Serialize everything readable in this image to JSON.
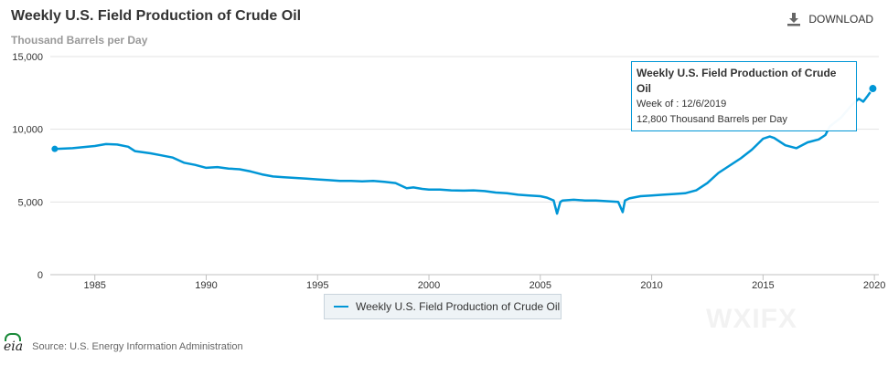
{
  "header": {
    "title": "Weekly U.S. Field Production of Crude Oil",
    "subtitle": "Thousand Barrels per Day",
    "download_label": "DOWNLOAD",
    "download_icon": "download-icon"
  },
  "legend": {
    "label": "Weekly U.S. Field Production of Crude Oil",
    "color": "#0096d6"
  },
  "tooltip": {
    "title": "Weekly U.S. Field Production of Crude Oil",
    "week": "Week of : 12/6/2019",
    "value": "12,800 Thousand Barrels per Day"
  },
  "footer": {
    "logo_text": "eia",
    "source": "Source: U.S. Energy Information Administration"
  },
  "watermark": "WXIFX",
  "chart_data": {
    "type": "line",
    "title": "Weekly U.S. Field Production of Crude Oil",
    "ylabel": "Thousand Barrels per Day",
    "xlim": [
      1983,
      2020.2
    ],
    "ylim": [
      0,
      15000
    ],
    "xticks": [
      1985,
      1990,
      1995,
      2000,
      2005,
      2010,
      2015,
      2020
    ],
    "yticks": [
      0,
      5000,
      10000,
      15000
    ],
    "ytick_labels": [
      "0",
      "5,000",
      "10,000",
      "15,000"
    ],
    "grid": true,
    "legend_position": "bottom-center",
    "series": [
      {
        "name": "Weekly U.S. Field Production of Crude Oil",
        "color": "#0096d6",
        "x": [
          1983.2,
          1984.0,
          1985.0,
          1985.5,
          1986.0,
          1986.5,
          1986.8,
          1987.5,
          1988.0,
          1988.5,
          1989.0,
          1989.5,
          1990.0,
          1990.5,
          1991.0,
          1991.5,
          1992.0,
          1992.5,
          1993.0,
          1993.5,
          1994.0,
          1994.5,
          1995.0,
          1995.5,
          1996.0,
          1996.5,
          1997.0,
          1997.5,
          1998.0,
          1998.5,
          1999.0,
          1999.3,
          1999.7,
          2000.0,
          2000.5,
          2001.0,
          2001.5,
          2002.0,
          2002.5,
          2003.0,
          2003.5,
          2004.0,
          2004.5,
          2005.0,
          2005.3,
          2005.6,
          2005.75,
          2005.9,
          2006.0,
          2006.5,
          2007.0,
          2007.5,
          2008.0,
          2008.5,
          2008.7,
          2008.8,
          2009.0,
          2009.5,
          2010.0,
          2010.5,
          2011.0,
          2011.5,
          2012.0,
          2012.5,
          2013.0,
          2013.5,
          2014.0,
          2014.5,
          2015.0,
          2015.3,
          2015.5,
          2016.0,
          2016.5,
          2017.0,
          2017.5,
          2017.8,
          2018.0,
          2018.5,
          2019.0,
          2019.3,
          2019.5,
          2019.7,
          2019.93
        ],
        "values": [
          8650,
          8700,
          8850,
          8980,
          8950,
          8800,
          8500,
          8350,
          8200,
          8050,
          7700,
          7550,
          7350,
          7400,
          7300,
          7250,
          7100,
          6900,
          6750,
          6700,
          6650,
          6600,
          6550,
          6500,
          6450,
          6450,
          6420,
          6450,
          6380,
          6300,
          5950,
          6000,
          5900,
          5850,
          5850,
          5800,
          5780,
          5800,
          5750,
          5650,
          5600,
          5500,
          5450,
          5400,
          5300,
          5100,
          4200,
          5000,
          5100,
          5150,
          5100,
          5100,
          5050,
          5000,
          4300,
          5100,
          5250,
          5400,
          5450,
          5500,
          5550,
          5600,
          5800,
          6300,
          7000,
          7500,
          8000,
          8600,
          9350,
          9500,
          9400,
          8900,
          8700,
          9100,
          9300,
          9600,
          10200,
          10800,
          11700,
          12100,
          11900,
          12300,
          12800
        ]
      }
    ],
    "highlight_point": {
      "x": 2019.93,
      "y": 12800
    }
  }
}
